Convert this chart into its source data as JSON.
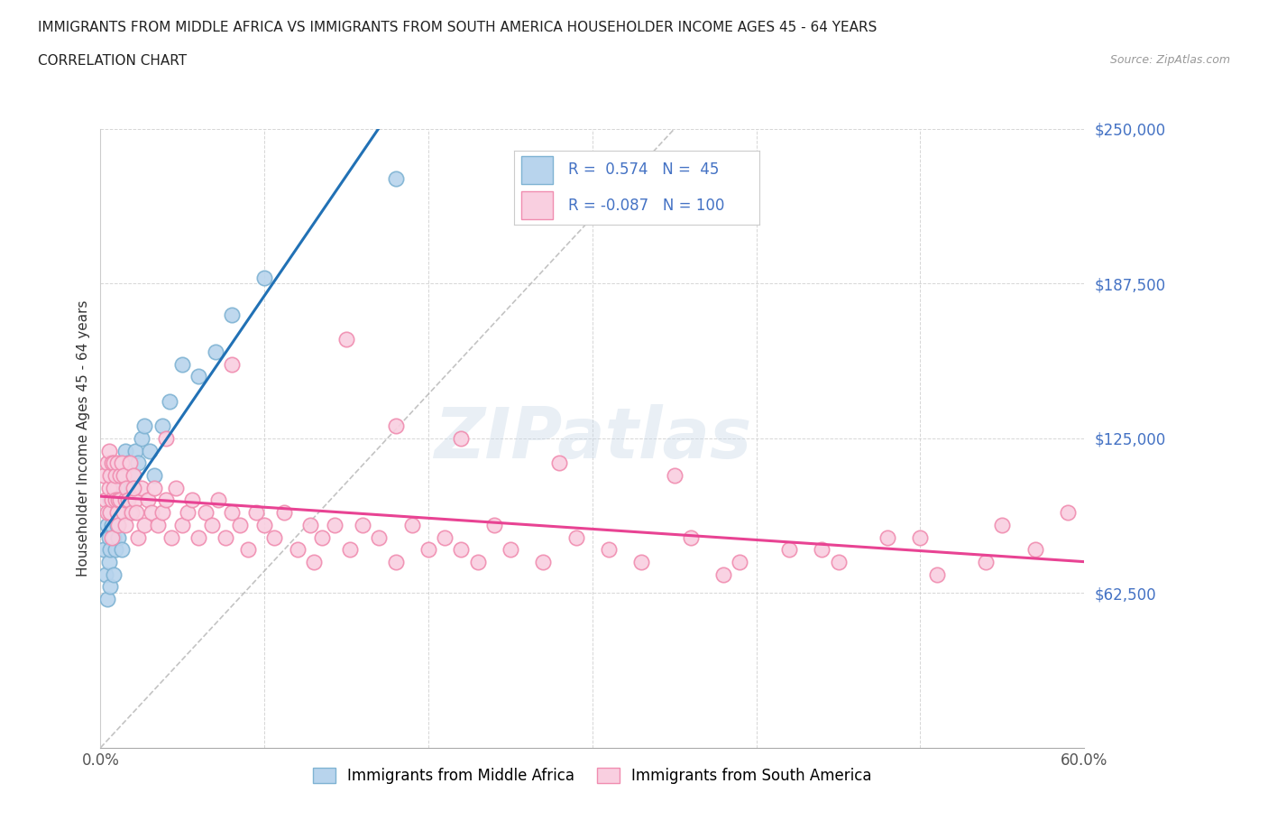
{
  "title_line1": "IMMIGRANTS FROM MIDDLE AFRICA VS IMMIGRANTS FROM SOUTH AMERICA HOUSEHOLDER INCOME AGES 45 - 64 YEARS",
  "title_line2": "CORRELATION CHART",
  "source_text": "Source: ZipAtlas.com",
  "ylabel": "Householder Income Ages 45 - 64 years",
  "xmin": 0.0,
  "xmax": 0.6,
  "ymin": 0,
  "ymax": 250000,
  "yticks": [
    0,
    62500,
    125000,
    187500,
    250000
  ],
  "ytick_labels": [
    "",
    "$62,500",
    "$125,000",
    "$187,500",
    "$250,000"
  ],
  "xticks": [
    0.0,
    0.1,
    0.2,
    0.3,
    0.4,
    0.5,
    0.6
  ],
  "xtick_labels": [
    "0.0%",
    "",
    "",
    "",
    "",
    "",
    "60.0%"
  ],
  "blue_scatter_x": [
    0.002,
    0.003,
    0.004,
    0.004,
    0.005,
    0.005,
    0.005,
    0.006,
    0.006,
    0.006,
    0.007,
    0.007,
    0.008,
    0.008,
    0.008,
    0.009,
    0.009,
    0.01,
    0.01,
    0.011,
    0.011,
    0.012,
    0.013,
    0.013,
    0.014,
    0.015,
    0.016,
    0.017,
    0.018,
    0.019,
    0.02,
    0.021,
    0.023,
    0.025,
    0.027,
    0.03,
    0.033,
    0.038,
    0.042,
    0.05,
    0.06,
    0.07,
    0.08,
    0.1,
    0.18
  ],
  "blue_scatter_y": [
    80000,
    70000,
    90000,
    60000,
    85000,
    95000,
    75000,
    100000,
    80000,
    65000,
    90000,
    110000,
    85000,
    95000,
    70000,
    100000,
    80000,
    90000,
    105000,
    85000,
    110000,
    95000,
    100000,
    80000,
    110000,
    120000,
    100000,
    115000,
    95000,
    105000,
    110000,
    120000,
    115000,
    125000,
    130000,
    120000,
    110000,
    130000,
    140000,
    155000,
    150000,
    160000,
    175000,
    190000,
    230000
  ],
  "pink_scatter_x": [
    0.002,
    0.003,
    0.004,
    0.004,
    0.005,
    0.005,
    0.006,
    0.006,
    0.007,
    0.007,
    0.007,
    0.008,
    0.008,
    0.009,
    0.009,
    0.01,
    0.01,
    0.011,
    0.011,
    0.012,
    0.012,
    0.013,
    0.014,
    0.014,
    0.015,
    0.015,
    0.016,
    0.017,
    0.018,
    0.019,
    0.02,
    0.021,
    0.022,
    0.023,
    0.025,
    0.027,
    0.029,
    0.031,
    0.033,
    0.035,
    0.038,
    0.04,
    0.043,
    0.046,
    0.05,
    0.053,
    0.056,
    0.06,
    0.064,
    0.068,
    0.072,
    0.076,
    0.08,
    0.085,
    0.09,
    0.095,
    0.1,
    0.106,
    0.112,
    0.12,
    0.128,
    0.135,
    0.143,
    0.152,
    0.16,
    0.17,
    0.18,
    0.19,
    0.2,
    0.21,
    0.22,
    0.23,
    0.24,
    0.25,
    0.27,
    0.29,
    0.31,
    0.33,
    0.36,
    0.39,
    0.42,
    0.45,
    0.48,
    0.51,
    0.54,
    0.57,
    0.18,
    0.22,
    0.35,
    0.28,
    0.15,
    0.08,
    0.04,
    0.02,
    0.13,
    0.38,
    0.44,
    0.5,
    0.55,
    0.59
  ],
  "pink_scatter_y": [
    110000,
    100000,
    115000,
    95000,
    105000,
    120000,
    95000,
    110000,
    100000,
    115000,
    85000,
    105000,
    115000,
    100000,
    110000,
    95000,
    115000,
    100000,
    90000,
    110000,
    100000,
    115000,
    95000,
    110000,
    100000,
    90000,
    105000,
    100000,
    115000,
    95000,
    110000,
    100000,
    95000,
    85000,
    105000,
    90000,
    100000,
    95000,
    105000,
    90000,
    95000,
    100000,
    85000,
    105000,
    90000,
    95000,
    100000,
    85000,
    95000,
    90000,
    100000,
    85000,
    95000,
    90000,
    80000,
    95000,
    90000,
    85000,
    95000,
    80000,
    90000,
    85000,
    90000,
    80000,
    90000,
    85000,
    75000,
    90000,
    80000,
    85000,
    80000,
    75000,
    90000,
    80000,
    75000,
    85000,
    80000,
    75000,
    85000,
    75000,
    80000,
    75000,
    85000,
    70000,
    75000,
    80000,
    130000,
    125000,
    110000,
    115000,
    165000,
    155000,
    125000,
    105000,
    75000,
    70000,
    80000,
    85000,
    90000,
    95000
  ]
}
